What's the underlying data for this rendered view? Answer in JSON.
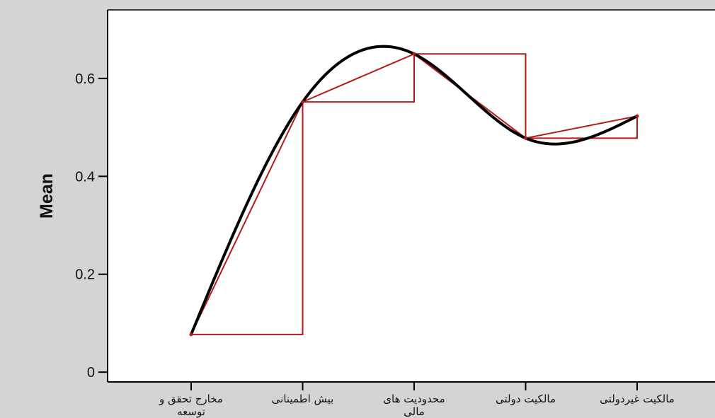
{
  "colors": {
    "outer_background": "#d4d4d4",
    "plot_background": "#ffffff",
    "curve": "#000000",
    "steps": "#b31b1b"
  },
  "chart_data": {
    "type": "line",
    "title": "",
    "ylabel": "Mean",
    "xlabel": "",
    "categories": [
      "مخارج تحقق و توسعه",
      "بیش اطمینانی",
      "محدودیت های مالی",
      "مالکیت دولتی",
      "مالکیت غیردولتی"
    ],
    "category_lines": [
      [
        "مخارج تحقق و",
        "توسعه"
      ],
      [
        "بیش اطمینانی"
      ],
      [
        "محدودیت های",
        "مالی"
      ],
      [
        "مالکیت دولتی"
      ],
      [
        "مالکیت غیردولتی"
      ]
    ],
    "ylim": [
      -0.02,
      0.74
    ],
    "yticks": [
      0,
      0.2,
      0.4,
      0.6
    ],
    "ytick_labels": [
      "0",
      "0.2",
      "0.4",
      "0.6"
    ],
    "grid": false,
    "series": [
      {
        "style": "smooth-curve",
        "values": [
          0.077,
          0.552,
          0.65,
          0.478,
          0.523
        ]
      },
      {
        "style": "step-and-segment",
        "values": [
          0.077,
          0.552,
          0.65,
          0.478,
          0.523
        ]
      }
    ]
  }
}
